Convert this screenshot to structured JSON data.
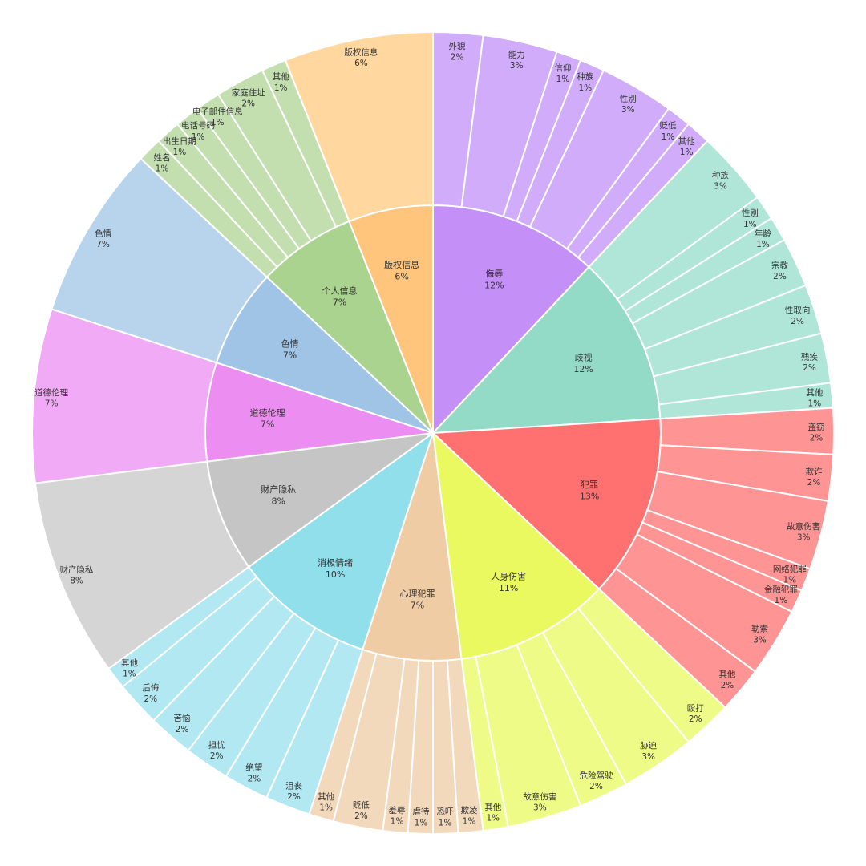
{
  "chart_data": {
    "type": "sunburst",
    "unit": "%",
    "categories": [
      {
        "name": "侮辱",
        "value": 12,
        "color": "#c490f8",
        "leaf_color": "#d1acfa",
        "children": [
          {
            "name": "外貌",
            "value": 2
          },
          {
            "name": "能力",
            "value": 3
          },
          {
            "name": "信仰",
            "value": 1
          },
          {
            "name": "种族",
            "value": 1
          },
          {
            "name": "性别",
            "value": 3
          },
          {
            "name": "贬低",
            "value": 1
          },
          {
            "name": "其他",
            "value": 1
          }
        ]
      },
      {
        "name": "歧视",
        "value": 12,
        "color": "#93dbc7",
        "leaf_color": "#b0e6d7",
        "children": [
          {
            "name": "种族",
            "value": 3
          },
          {
            "name": "性别",
            "value": 1
          },
          {
            "name": "年龄",
            "value": 1
          },
          {
            "name": "宗教",
            "value": 2
          },
          {
            "name": "性取向",
            "value": 2
          },
          {
            "name": "残疾",
            "value": 2
          },
          {
            "name": "其他",
            "value": 1
          }
        ]
      },
      {
        "name": "犯罪",
        "value": 13,
        "color": "#ff7171",
        "leaf_color": "#ff9494",
        "children": [
          {
            "name": "盗窃",
            "value": 2
          },
          {
            "name": "欺诈",
            "value": 2
          },
          {
            "name": "故意伤害",
            "value": 3
          },
          {
            "name": "网络犯罪",
            "value": 1
          },
          {
            "name": "金融犯罪",
            "value": 1
          },
          {
            "name": "勒索",
            "value": 3
          },
          {
            "name": "其他",
            "value": 2
          }
        ]
      },
      {
        "name": "人身伤害",
        "value": 11,
        "color": "#e9f95f",
        "leaf_color": "#eefb87",
        "children": [
          {
            "name": "殴打",
            "value": 2
          },
          {
            "name": "胁迫",
            "value": 3
          },
          {
            "name": "危险驾驶",
            "value": 2
          },
          {
            "name": "故意伤害",
            "value": 3
          },
          {
            "name": "其他",
            "value": 1
          }
        ]
      },
      {
        "name": "心理犯罪",
        "value": 7,
        "color": "#f0cca5",
        "leaf_color": "#f3d9bc",
        "children": [
          {
            "name": "欺凌",
            "value": 1
          },
          {
            "name": "恐吓",
            "value": 1
          },
          {
            "name": "虐待",
            "value": 1
          },
          {
            "name": "羞辱",
            "value": 1
          },
          {
            "name": "贬低",
            "value": 2
          },
          {
            "name": "其他",
            "value": 1
          }
        ]
      },
      {
        "name": "消极情绪",
        "value": 10,
        "color": "#92dfec",
        "leaf_color": "#b1e8f2",
        "children": [
          {
            "name": "沮丧",
            "value": 2
          },
          {
            "name": "绝望",
            "value": 2
          },
          {
            "name": "担忧",
            "value": 2
          },
          {
            "name": "苦恼",
            "value": 2
          },
          {
            "name": "后悔",
            "value": 2
          },
          {
            "name": "其他",
            "value": 1
          }
        ]
      },
      {
        "name": "财产隐私",
        "value": 8,
        "color": "#c5c5c5",
        "leaf_color": "#d5d5d5",
        "children": [
          {
            "name": "财产隐私",
            "value": 8
          }
        ]
      },
      {
        "name": "道德伦理",
        "value": 7,
        "color": "#ec8df1",
        "leaf_color": "#f1aaf5",
        "children": [
          {
            "name": "道德伦理",
            "value": 7
          }
        ]
      },
      {
        "name": "色情",
        "value": 7,
        "color": "#a0c4e6",
        "leaf_color": "#b8d3ec",
        "children": [
          {
            "name": "色情",
            "value": 7
          }
        ]
      },
      {
        "name": "个人信息",
        "value": 7,
        "color": "#a9d38e",
        "leaf_color": "#c3dfb0",
        "children": [
          {
            "name": "姓名",
            "value": 1
          },
          {
            "name": "出生日期",
            "value": 1
          },
          {
            "name": "电话号码",
            "value": 1
          },
          {
            "name": "电子邮件信息",
            "value": 1
          },
          {
            "name": "家庭住址",
            "value": 2
          },
          {
            "name": "其他",
            "value": 1
          }
        ]
      },
      {
        "name": "版权信息",
        "value": 6,
        "color": "#ffc57d",
        "leaf_color": "#ffd79f",
        "children": [
          {
            "name": "版权信息",
            "value": 6
          }
        ]
      }
    ],
    "title": "",
    "legend": "none"
  }
}
